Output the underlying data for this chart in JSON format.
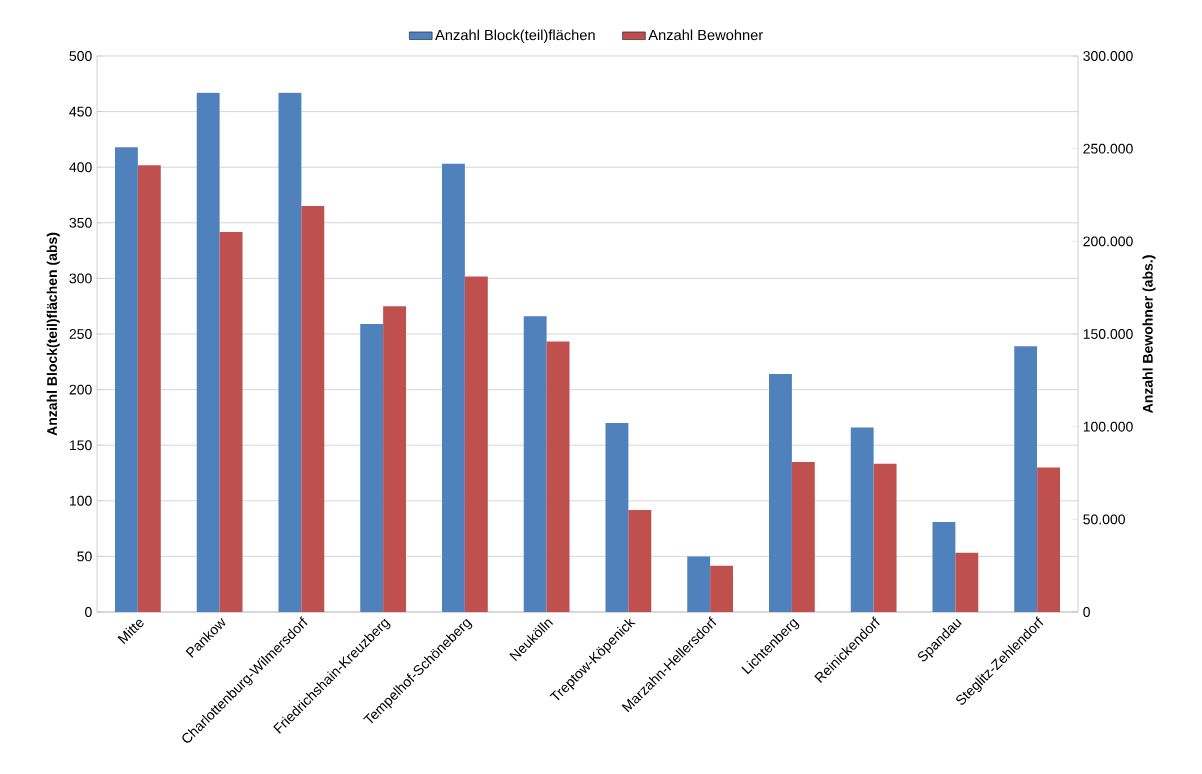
{
  "chart_data": {
    "type": "bar",
    "categories": [
      "Mitte",
      "Pankow",
      "Charlottenburg-Wilmersdorf",
      "Friedrichshain-Kreuzberg",
      "Tempelhof-Schöneberg",
      "Neukölln",
      "Treptow-Köpenick",
      "Marzahn-Hellersdorf",
      "Lichtenberg",
      "Reinickendorf",
      "Spandau",
      "Steglitz-Zehlendorf"
    ],
    "series": [
      {
        "name": "Anzahl Block(teil)flächen",
        "color": "#4f81bd",
        "values": [
          418,
          467,
          467,
          259,
          403,
          266,
          170,
          50,
          214,
          166,
          81,
          239
        ]
      },
      {
        "name": "Anzahl Bewohner",
        "color": "#c0504d",
        "axis": "y2",
        "values": [
          241000,
          205000,
          219000,
          165000,
          181000,
          146000,
          55000,
          25000,
          81000,
          80000,
          32000,
          78000
        ]
      }
    ],
    "ylabel": "Anzahl Block(teil)flächen (abs)",
    "y2label": "Anzahl Bewohner (abs.)",
    "ylim": [
      0,
      500
    ],
    "yticks": [
      0,
      50,
      100,
      150,
      200,
      250,
      300,
      350,
      400,
      450,
      500
    ],
    "y2lim": [
      0,
      300000
    ],
    "y2ticks": [
      0,
      {
        "value": 50000,
        "label": "50.000"
      },
      {
        "value": 100000,
        "label": "100.000"
      },
      {
        "value": 150000,
        "label": "150.000"
      },
      {
        "value": 200000,
        "label": "200.000"
      },
      {
        "value": 250000,
        "label": "250.000"
      },
      {
        "value": 300000,
        "label": "300.000"
      }
    ],
    "grid": "y",
    "legend": "top"
  }
}
